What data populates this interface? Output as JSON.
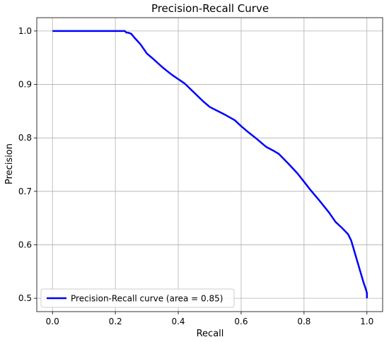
{
  "chart_data": {
    "type": "line",
    "title": "Precision-Recall Curve",
    "xlabel": "Recall",
    "ylabel": "Precision",
    "xlim": [
      -0.05,
      1.05
    ],
    "ylim": [
      0.475,
      1.025
    ],
    "xticks": [
      0.0,
      0.2,
      0.4,
      0.6,
      0.8,
      1.0
    ],
    "xtick_labels": [
      "0.0",
      "0.2",
      "0.4",
      "0.6",
      "0.8",
      "1.0"
    ],
    "yticks": [
      0.5,
      0.6,
      0.7,
      0.8,
      0.9,
      1.0
    ],
    "ytick_labels": [
      "0.5",
      "0.6",
      "0.7",
      "0.8",
      "0.9",
      "1.0"
    ],
    "grid": true,
    "legend_position": "lower-left",
    "series": [
      {
        "name": "Precision-Recall curve (area = 0.85)",
        "color": "#0000ff",
        "x": [
          0.0,
          0.05,
          0.1,
          0.15,
          0.2,
          0.23,
          0.235,
          0.24,
          0.25,
          0.26,
          0.28,
          0.3,
          0.32,
          0.35,
          0.38,
          0.4,
          0.42,
          0.45,
          0.48,
          0.5,
          0.52,
          0.55,
          0.58,
          0.6,
          0.62,
          0.65,
          0.68,
          0.7,
          0.72,
          0.75,
          0.78,
          0.8,
          0.82,
          0.85,
          0.88,
          0.9,
          0.92,
          0.94,
          0.95,
          0.96,
          0.97,
          0.98,
          0.99,
          0.995,
          1.0,
          1.0
        ],
        "y": [
          1.0,
          1.0,
          1.0,
          1.0,
          1.0,
          1.0,
          0.997,
          0.997,
          0.995,
          0.988,
          0.975,
          0.958,
          0.948,
          0.932,
          0.918,
          0.91,
          0.902,
          0.885,
          0.868,
          0.858,
          0.852,
          0.843,
          0.833,
          0.822,
          0.812,
          0.798,
          0.783,
          0.777,
          0.77,
          0.752,
          0.733,
          0.718,
          0.703,
          0.682,
          0.66,
          0.643,
          0.632,
          0.62,
          0.608,
          0.588,
          0.568,
          0.548,
          0.528,
          0.52,
          0.51,
          0.5
        ]
      }
    ]
  }
}
